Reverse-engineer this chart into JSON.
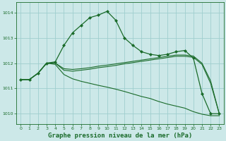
{
  "bg_color": "#cce8e8",
  "grid_color": "#9fcece",
  "line_color": "#1a6b2a",
  "marker_color": "#1a6b2a",
  "xlabel": "Graphe pression niveau de la mer (hPa)",
  "xlabel_fontsize": 6.5,
  "ylim": [
    1009.6,
    1014.4
  ],
  "xlim": [
    -0.5,
    23.5
  ],
  "yticks": [
    1010,
    1011,
    1012,
    1013,
    1014
  ],
  "xticks": [
    0,
    1,
    2,
    3,
    4,
    5,
    6,
    7,
    8,
    9,
    10,
    11,
    12,
    13,
    14,
    15,
    16,
    17,
    18,
    19,
    20,
    21,
    22,
    23
  ],
  "series": [
    {
      "x": [
        0,
        1,
        2,
        3,
        4,
        5,
        6,
        7,
        8,
        9,
        10,
        11,
        12,
        13,
        14,
        15,
        16,
        17,
        18,
        19,
        20,
        21,
        22,
        23
      ],
      "y": [
        1011.35,
        1011.35,
        1011.6,
        1012.0,
        1012.05,
        1012.7,
        1013.2,
        1013.5,
        1013.8,
        1013.9,
        1014.05,
        1013.7,
        1013.0,
        1012.7,
        1012.45,
        1012.35,
        1012.3,
        1012.35,
        1012.45,
        1012.5,
        1012.2,
        1010.8,
        1010.0,
        1010.0
      ],
      "marker": "D",
      "markersize": 2.0,
      "linewidth": 0.9
    },
    {
      "x": [
        0,
        1,
        2,
        3,
        4,
        5,
        6,
        7,
        8,
        9,
        10,
        11,
        12,
        13,
        14,
        15,
        16,
        17,
        18,
        19,
        20,
        21,
        22,
        23
      ],
      "y": [
        1011.35,
        1011.35,
        1011.6,
        1012.0,
        1012.0,
        1011.78,
        1011.75,
        1011.78,
        1011.82,
        1011.88,
        1011.92,
        1011.97,
        1012.02,
        1012.07,
        1012.12,
        1012.17,
        1012.22,
        1012.27,
        1012.32,
        1012.32,
        1012.28,
        1012.0,
        1011.3,
        1010.0
      ],
      "marker": null,
      "linewidth": 0.8
    },
    {
      "x": [
        0,
        1,
        2,
        3,
        4,
        5,
        6,
        7,
        8,
        9,
        10,
        11,
        12,
        13,
        14,
        15,
        16,
        17,
        18,
        19,
        20,
        21,
        22,
        23
      ],
      "y": [
        1011.35,
        1011.35,
        1011.6,
        1012.0,
        1012.0,
        1011.72,
        1011.68,
        1011.72,
        1011.76,
        1011.82,
        1011.86,
        1011.91,
        1011.97,
        1012.02,
        1012.07,
        1012.12,
        1012.17,
        1012.22,
        1012.27,
        1012.27,
        1012.23,
        1011.95,
        1011.2,
        1010.0
      ],
      "marker": null,
      "linewidth": 0.8
    },
    {
      "x": [
        0,
        1,
        2,
        3,
        4,
        5,
        6,
        7,
        8,
        9,
        10,
        11,
        12,
        13,
        14,
        15,
        16,
        17,
        18,
        19,
        20,
        21,
        22,
        23
      ],
      "y": [
        1011.35,
        1011.35,
        1011.6,
        1012.0,
        1011.95,
        1011.55,
        1011.38,
        1011.28,
        1011.2,
        1011.12,
        1011.05,
        1010.97,
        1010.88,
        1010.78,
        1010.68,
        1010.6,
        1010.48,
        1010.38,
        1010.3,
        1010.22,
        1010.08,
        1009.98,
        1009.92,
        1009.92
      ],
      "marker": null,
      "linewidth": 0.8
    }
  ]
}
